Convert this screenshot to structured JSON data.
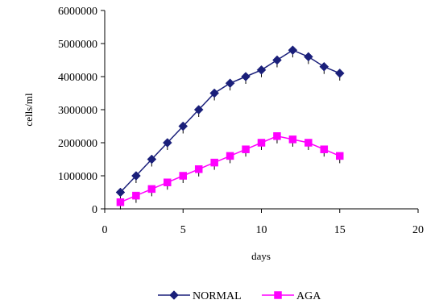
{
  "chart_data": {
    "type": "line",
    "title": "",
    "xlabel": "days",
    "ylabel": "cells/ml",
    "xlim": [
      0,
      20
    ],
    "ylim": [
      0,
      6000000
    ],
    "x_ticks": [
      0,
      5,
      10,
      15,
      20
    ],
    "y_ticks": [
      0,
      1000000,
      2000000,
      3000000,
      4000000,
      5000000,
      6000000
    ],
    "grid": false,
    "legend_position": "bottom",
    "series": [
      {
        "name": "NORMAL",
        "color": "#1a1f7a",
        "marker": "diamond",
        "points": [
          {
            "x": 1,
            "y": 500000
          },
          {
            "x": 2,
            "y": 1000000
          },
          {
            "x": 3,
            "y": 1500000
          },
          {
            "x": 4,
            "y": 2000000
          },
          {
            "x": 5,
            "y": 2500000
          },
          {
            "x": 6,
            "y": 3000000
          },
          {
            "x": 7,
            "y": 3500000
          },
          {
            "x": 8,
            "y": 3800000
          },
          {
            "x": 9,
            "y": 4000000
          },
          {
            "x": 10,
            "y": 4200000
          },
          {
            "x": 11,
            "y": 4500000
          },
          {
            "x": 12,
            "y": 4800000
          },
          {
            "x": 13,
            "y": 4600000
          },
          {
            "x": 14,
            "y": 4300000
          },
          {
            "x": 15,
            "y": 4100000
          }
        ]
      },
      {
        "name": "AGA",
        "color": "#ff00ff",
        "marker": "square",
        "points": [
          {
            "x": 1,
            "y": 200000
          },
          {
            "x": 2,
            "y": 400000
          },
          {
            "x": 3,
            "y": 600000
          },
          {
            "x": 4,
            "y": 800000
          },
          {
            "x": 5,
            "y": 1000000
          },
          {
            "x": 6,
            "y": 1200000
          },
          {
            "x": 7,
            "y": 1400000
          },
          {
            "x": 8,
            "y": 1600000
          },
          {
            "x": 9,
            "y": 1800000
          },
          {
            "x": 10,
            "y": 2000000
          },
          {
            "x": 11,
            "y": 2200000
          },
          {
            "x": 12,
            "y": 2100000
          },
          {
            "x": 13,
            "y": 2000000
          },
          {
            "x": 14,
            "y": 1800000
          },
          {
            "x": 15,
            "y": 1600000
          }
        ]
      }
    ]
  }
}
